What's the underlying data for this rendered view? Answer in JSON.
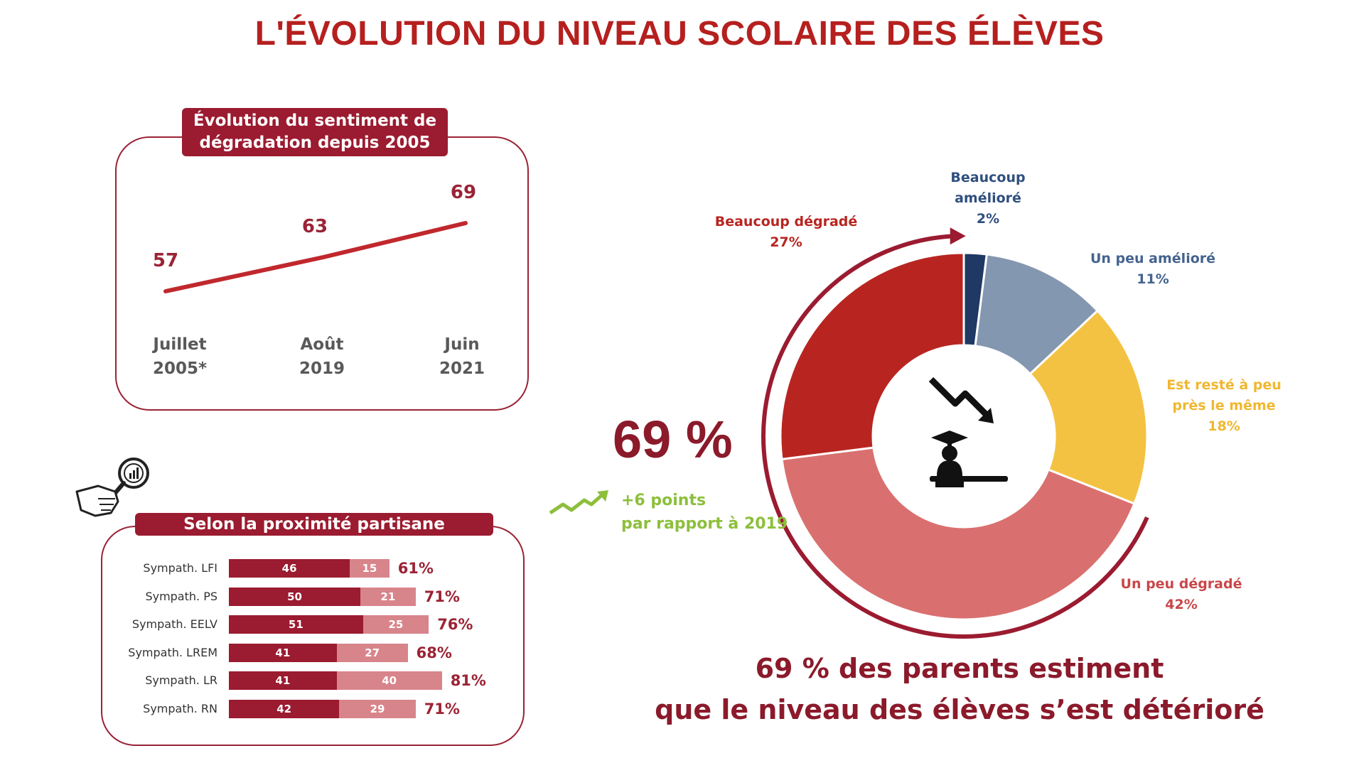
{
  "title": "L'ÉVOLUTION DU NIVEAU SCOLAIRE DES ÉLÈVES",
  "colors": {
    "title": "#b5201f",
    "dark_red": "#9b1b30",
    "light_red": "#d8848b",
    "green": "#8dbf3c"
  },
  "chart_data": [
    {
      "type": "line",
      "title": "Évolution du sentiment de dégradation depuis 2005",
      "x": [
        "Juillet 2005*",
        "Août 2019",
        "Juin 2021"
      ],
      "x_lines": [
        [
          "Juillet",
          "2005*"
        ],
        [
          "Août",
          "2019"
        ],
        [
          "Juin",
          "2021"
        ]
      ],
      "series": [
        {
          "values": [
            57,
            63,
            69
          ],
          "color": "#c0282d"
        }
      ],
      "xlabel": "",
      "ylabel": "",
      "grid": false
    },
    {
      "type": "bar",
      "orientation": "horizontal",
      "stacked": true,
      "title": "Selon la proximité partisane",
      "categories": [
        "Sympath. LFI",
        "Sympath. PS",
        "Sympath. EELV",
        "Sympath. LREM",
        "Sympath. LR",
        "Sympath. RN"
      ],
      "series": [
        {
          "values": [
            46,
            50,
            51,
            41,
            41,
            42
          ],
          "color": "#9b1b30"
        },
        {
          "values": [
            15,
            21,
            25,
            27,
            40,
            29
          ],
          "color": "#d8848b"
        }
      ],
      "totals": [
        "61%",
        "71%",
        "76%",
        "68%",
        "81%",
        "71%"
      ]
    },
    {
      "type": "pie",
      "donut": true,
      "slices": [
        {
          "label": "Beaucoup amélioré",
          "lines": [
            "Beaucoup",
            "amélioré",
            "2%"
          ],
          "value": 2,
          "color": "#1f3864"
        },
        {
          "label": "Un peu amélioré",
          "lines": [
            "Un peu amélioré",
            "11%"
          ],
          "value": 11,
          "color": "#8497b0"
        },
        {
          "label": "Est resté à peu près le même",
          "lines": [
            "Est resté à peu",
            "près le même",
            "18%"
          ],
          "value": 18,
          "color": "#f4c242"
        },
        {
          "label": "Un peu dégradé",
          "lines": [
            "Un peu dégradé",
            "42%"
          ],
          "value": 42,
          "color": "#d9706f"
        },
        {
          "label": "Beaucoup dégradé",
          "lines": [
            "Beaucoup dégradé",
            "27%"
          ],
          "value": 27,
          "color": "#b82520"
        }
      ],
      "label_colors": [
        "#2f4f7f",
        "#44638f",
        "#f0b72f",
        "#c8474a",
        "#b82520"
      ]
    }
  ],
  "highlight": {
    "big_value": "69 %",
    "change_line1": "+6 points",
    "change_line2": "par rapport à 2019",
    "headline_line1": "69 % des parents estiment",
    "headline_line2": "que le niveau des élèves s’est détérioré"
  }
}
